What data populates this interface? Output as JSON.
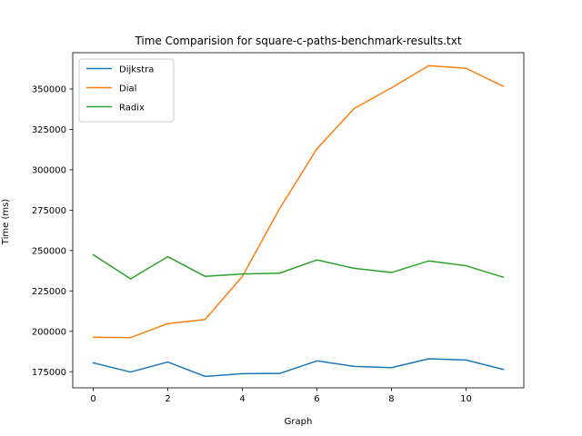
{
  "chart_data": {
    "type": "line",
    "title": "Time Comparision for square-c-paths-benchmark-results.txt",
    "xlabel": "Graph",
    "ylabel": "Time (ms)",
    "xlim": [
      -0.55,
      11.55
    ],
    "ylim": [
      165000,
      372500
    ],
    "xticks": [
      0,
      2,
      4,
      6,
      8,
      10
    ],
    "yticks": [
      175000,
      200000,
      225000,
      250000,
      275000,
      300000,
      325000,
      350000
    ],
    "grid": false,
    "legend": "top-left",
    "x": [
      0,
      1,
      2,
      3,
      4,
      5,
      6,
      7,
      8,
      9,
      10,
      11
    ],
    "series": [
      {
        "name": "Dijkstra",
        "color": "#1f77b4",
        "values": [
          180500,
          174800,
          181000,
          172100,
          173800,
          173900,
          181700,
          178300,
          177500,
          183000,
          182200,
          176400
        ]
      },
      {
        "name": "Dial",
        "color": "#ff7f0e",
        "values": [
          196300,
          196100,
          204800,
          207300,
          234000,
          276000,
          313000,
          338000,
          350700,
          364500,
          362800,
          351700
        ]
      },
      {
        "name": "Radix",
        "color": "#2ca02c",
        "values": [
          247400,
          232500,
          246200,
          234000,
          235500,
          236000,
          244200,
          239000,
          236400,
          243600,
          240600,
          233500
        ]
      }
    ]
  }
}
